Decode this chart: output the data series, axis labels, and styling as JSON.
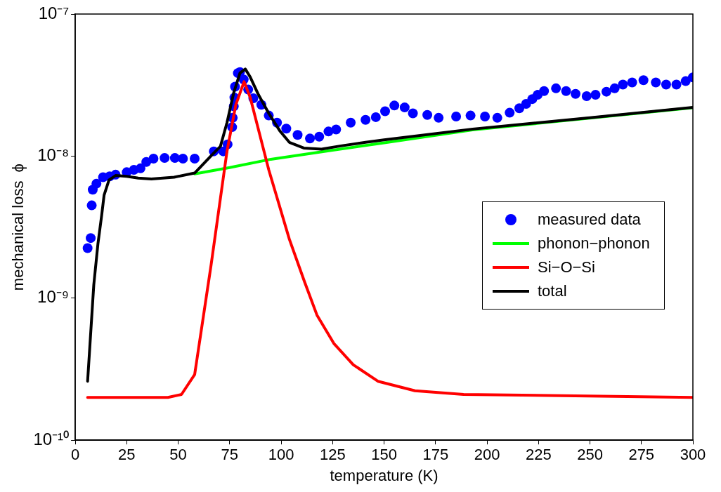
{
  "chart_data": {
    "type": "line",
    "xlabel": "temperature (K)",
    "ylabel": "mechanical loss  ϕ",
    "log": "y",
    "grid": false,
    "legend": "right",
    "xlim": [
      0,
      300
    ],
    "xticks": [
      0,
      25,
      50,
      75,
      100,
      125,
      150,
      175,
      200,
      225,
      250,
      275,
      300
    ],
    "ylim": [
      1e-10,
      1e-07
    ],
    "yticks": [
      {
        "value": 1e-10,
        "label": "10⁻¹⁰"
      },
      {
        "value": 1e-09,
        "label": "10⁻⁹"
      },
      {
        "value": 1e-08,
        "label": "10⁻⁸"
      },
      {
        "value": 1e-07,
        "label": "10⁻⁷"
      }
    ],
    "series": [
      {
        "name": "measured data",
        "type": "scatter",
        "marker": "circle",
        "color": "#0000ff",
        "x": [
          6,
          7.5,
          8,
          8.5,
          10.3,
          13.5,
          16.7,
          19.6,
          25,
          28.5,
          31.7,
          34.5,
          38,
          43.4,
          48.4,
          52.3,
          58,
          67.3,
          71.9,
          74,
          76.2,
          76.5,
          77,
          77.3,
          77.6,
          79,
          80,
          81.8,
          84,
          86.5,
          90.4,
          94,
          98,
          102.5,
          108,
          114,
          118.5,
          123,
          126.7,
          133.8,
          141,
          146,
          150.5,
          155,
          160,
          164,
          171,
          176.5,
          185,
          192,
          199,
          205,
          211,
          215.7,
          219,
          222,
          224.6,
          227.7,
          233.5,
          238.4,
          243,
          248.4,
          252.7,
          258,
          262,
          266,
          270.5,
          276,
          282,
          287,
          292,
          296.5,
          300
        ],
        "values": [
          2.25e-09,
          2.65e-09,
          4.5e-09,
          5.8e-09,
          6.4e-09,
          7.1e-09,
          7.2e-09,
          7.4e-09,
          7.7e-09,
          8e-09,
          8.2e-09,
          9.1e-09,
          9.6e-09,
          9.7e-09,
          9.7e-09,
          9.6e-09,
          9.6e-09,
          1.08e-08,
          1.08e-08,
          1.21e-08,
          1.6e-08,
          1.86e-08,
          2.24e-08,
          2.58e-08,
          3.08e-08,
          3.84e-08,
          3.9e-08,
          3.46e-08,
          2.94e-08,
          2.55e-08,
          2.3e-08,
          1.93e-08,
          1.72e-08,
          1.56e-08,
          1.41e-08,
          1.33e-08,
          1.37e-08,
          1.49e-08,
          1.54e-08,
          1.72e-08,
          1.8e-08,
          1.88e-08,
          2.07e-08,
          2.27e-08,
          2.2e-08,
          2e-08,
          1.95e-08,
          1.86e-08,
          1.9e-08,
          1.93e-08,
          1.9e-08,
          1.86e-08,
          2.02e-08,
          2.17e-08,
          2.33e-08,
          2.52e-08,
          2.7e-08,
          2.87e-08,
          3e-08,
          2.87e-08,
          2.74e-08,
          2.64e-08,
          2.7e-08,
          2.84e-08,
          3e-08,
          3.19e-08,
          3.3e-08,
          3.42e-08,
          3.3e-08,
          3.19e-08,
          3.19e-08,
          3.37e-08,
          3.58e-08
        ]
      },
      {
        "name": "phonon−phonon",
        "type": "line",
        "marker": "none",
        "line_style": "solid",
        "color": "#00ff00",
        "x": [
          58,
          75,
          95,
          125,
          150,
          193,
          250,
          300
        ],
        "values": [
          7.5e-09,
          8.3e-09,
          9.5e-09,
          1.1e-08,
          1.24e-08,
          1.53e-08,
          1.85e-08,
          2.19e-08
        ]
      },
      {
        "name": "Si−O−Si",
        "type": "line",
        "marker": "none",
        "line_style": "solid",
        "color": "#ff0000",
        "x": [
          6,
          45,
          51.6,
          58,
          66,
          73.7,
          78,
          82,
          85,
          94,
          104,
          111.4,
          117.4,
          125.6,
          135,
          147,
          165,
          188.6,
          300
        ],
        "values": [
          2e-10,
          2e-10,
          2.1e-10,
          2.9e-10,
          1.72e-09,
          1.08e-08,
          2.3e-08,
          3.34e-08,
          2.58e-08,
          8e-09,
          2.6e-09,
          1.3e-09,
          7.6e-10,
          4.8e-10,
          3.4e-10,
          2.6e-10,
          2.23e-10,
          2.1e-10,
          2e-10
        ]
      },
      {
        "name": "total",
        "type": "line",
        "marker": "none",
        "line_style": "solid",
        "color": "#000000",
        "x": [
          6,
          9,
          11,
          12.8,
          14,
          16.4,
          19.6,
          25,
          30.6,
          37,
          48,
          58,
          67,
          70.5,
          73.7,
          77,
          80,
          82.6,
          85,
          89,
          94,
          99.3,
          104,
          111,
          119.6,
          129,
          141,
          150,
          193,
          250,
          300
        ],
        "values": [
          2.6e-10,
          1.24e-09,
          2.4e-09,
          3.8e-09,
          5.3e-09,
          6.8e-09,
          7.3e-09,
          7.2e-09,
          7e-09,
          6.9e-09,
          7.1e-09,
          7.6e-09,
          1.04e-08,
          1.17e-08,
          1.72e-08,
          2.8e-08,
          3.84e-08,
          4.1e-08,
          3.6e-08,
          2.7e-08,
          2e-08,
          1.51e-08,
          1.25e-08,
          1.14e-08,
          1.12e-08,
          1.18e-08,
          1.25e-08,
          1.3e-08,
          1.55e-08,
          1.86e-08,
          2.2e-08
        ]
      }
    ]
  }
}
